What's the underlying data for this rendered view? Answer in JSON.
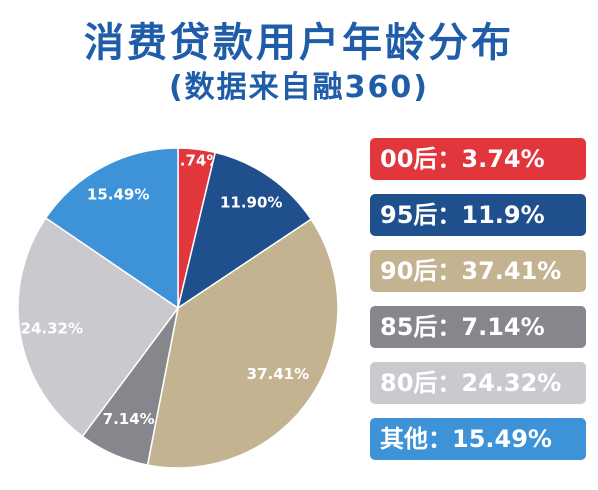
{
  "title": "消费贷款用户年龄分布",
  "subtitle": "(数据来自融360)",
  "legend": [
    {
      "text": "00后：3.74%",
      "color": "#e0363c"
    },
    {
      "text": "95后：11.9%",
      "color": "#1f4f8c"
    },
    {
      "text": "90后：37.41%",
      "color": "#c4b391"
    },
    {
      "text": "85后：7.14%",
      "color": "#85878d"
    },
    {
      "text": "80后：24.32%",
      "color": "#c9c9ce"
    },
    {
      "text": "其他：15.49%",
      "color": "#3d92d8"
    }
  ],
  "chart_data": {
    "type": "pie",
    "categories": [
      "00后",
      "95后",
      "90后",
      "85后",
      "80后",
      "其他"
    ],
    "values": [
      3.74,
      11.9,
      37.41,
      7.14,
      24.32,
      15.49
    ],
    "labels": [
      "3.74%",
      "11.90%",
      "37.41%",
      "7.14%",
      "24.32%",
      "15.49%"
    ],
    "colors": [
      "#e0363c",
      "#1f4f8c",
      "#c4b391",
      "#85878d",
      "#c9c9ce",
      "#3d92d8"
    ],
    "label_colors": [
      "#ffffff",
      "#ffffff",
      "#ffffff",
      "#ffffff",
      "#ffffff",
      "#ffffff"
    ],
    "title": "消费贷款用户年龄分布",
    "subtitle": "(数据来自融360)",
    "legend_placement": "right"
  }
}
